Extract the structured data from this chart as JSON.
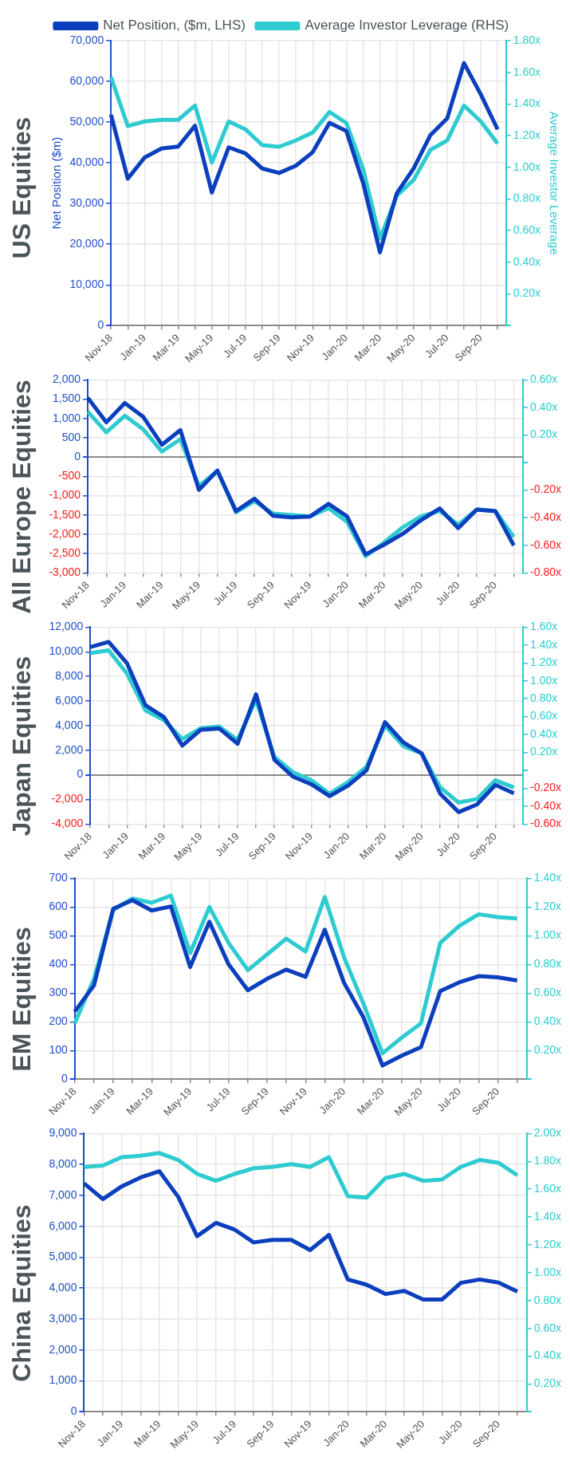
{
  "chart_data": [
    {
      "type": "line",
      "title": "US Equities",
      "ylabel": "Net Position ($m)",
      "y2label": "Average Investor Leverage",
      "legend": "top",
      "grid": true,
      "categories": [
        "Nov-18",
        null,
        "Jan-19",
        null,
        "Mar-19",
        null,
        "May-19",
        null,
        "Jul-19",
        null,
        "Sep-19",
        null,
        "Nov-19",
        null,
        "Jan-20",
        null,
        "Mar-20",
        null,
        "May-20",
        null,
        "Jul-20",
        null,
        "Sep-20",
        null
      ],
      "ylim": [
        0,
        70000
      ],
      "yticks": [
        0,
        {
          "value": 10000,
          "label": "10,000"
        },
        {
          "value": 20000,
          "label": "20,000"
        },
        {
          "value": 30000,
          "label": "30,000"
        },
        {
          "value": 40000,
          "label": "40,000"
        },
        {
          "value": 50000,
          "label": "50,000"
        },
        {
          "value": 60000,
          "label": "60,000"
        },
        {
          "value": 70000,
          "label": "70,000"
        }
      ],
      "y2lim": [
        0,
        1.8
      ],
      "y2ticks": [
        {
          "value": 0,
          "label": null
        },
        {
          "value": 0.2,
          "label": "0.20x"
        },
        {
          "value": 0.4,
          "label": "0.40x"
        },
        {
          "value": 0.6,
          "label": "0.60x"
        },
        {
          "value": 0.8,
          "label": "0.80x"
        },
        {
          "value": 1.0,
          "label": "1.00x"
        },
        {
          "value": 1.2,
          "label": "1.20x"
        },
        {
          "value": 1.4,
          "label": "1.40x"
        },
        {
          "value": 1.6,
          "label": "1.60x"
        },
        {
          "value": 1.8,
          "label": "1.80x"
        }
      ],
      "series": [
        {
          "name": "Net Position, ($m, LHS)",
          "color": "#0b3fbd",
          "values": [
            51800,
            36100,
            41300,
            43500,
            44000,
            49100,
            32700,
            43800,
            42300,
            38600,
            37500,
            39300,
            42600,
            49800,
            47800,
            35000,
            18000,
            32500,
            38600,
            46800,
            50900,
            64500,
            56800,
            48200
          ]
        },
        {
          "name": "Average Investor Leverage (RHS)",
          "color": "#2ecbd0",
          "axis": "y2",
          "values": [
            1.57,
            1.26,
            1.29,
            1.3,
            1.3,
            1.39,
            1.03,
            1.29,
            1.24,
            1.14,
            1.13,
            1.17,
            1.22,
            1.35,
            1.28,
            0.99,
            0.55,
            0.82,
            0.92,
            1.11,
            1.17,
            1.39,
            1.29,
            1.15
          ]
        }
      ]
    },
    {
      "type": "line",
      "title": "All Europe Equities",
      "grid": true,
      "categories": [
        "Nov-18",
        null,
        "Jan-19",
        null,
        "Mar-19",
        null,
        "May-19",
        null,
        "Jul-19",
        null,
        "Sep-19",
        null,
        "Nov-19",
        null,
        "Jan-20",
        null,
        "Mar-20",
        null,
        "May-20",
        null,
        "Jul-20",
        null,
        "Sep-20",
        null
      ],
      "ylim": [
        -3000,
        2000
      ],
      "yticks": [
        {
          "value": -3000,
          "label": "-3,000"
        },
        {
          "value": -2500,
          "label": "-2,500"
        },
        {
          "value": -2000,
          "label": "-2,000"
        },
        {
          "value": -1500,
          "label": "-1,500"
        },
        {
          "value": -1000,
          "label": "-1,000"
        },
        -500,
        0,
        500,
        {
          "value": 1000,
          "label": "1,000"
        },
        {
          "value": 1500,
          "label": "1,500"
        },
        {
          "value": 2000,
          "label": "2,000"
        }
      ],
      "y2lim": [
        -0.8,
        0.6
      ],
      "y2ticks": [
        {
          "value": -0.8,
          "label": "-0.80x"
        },
        {
          "value": -0.6,
          "label": "-0.60x"
        },
        {
          "value": -0.4,
          "label": "-0.40x"
        },
        {
          "value": -0.2,
          "label": "-0.20x"
        },
        {
          "value": 0,
          "label": null
        },
        {
          "value": 0.2,
          "label": "0.20x"
        },
        {
          "value": 0.4,
          "label": "0.40x"
        },
        {
          "value": 0.6,
          "label": "0.60x"
        }
      ],
      "series": [
        {
          "color": "#0b3fbd",
          "values": [
            1540,
            900,
            1400,
            1040,
            320,
            700,
            -850,
            -350,
            -1400,
            -1080,
            -1520,
            -1560,
            -1540,
            -1210,
            -1540,
            -2520,
            -2270,
            -1990,
            -1630,
            -1330,
            -1840,
            -1360,
            -1400,
            -2290
          ]
        },
        {
          "color": "#2ecbd0",
          "axis": "y2",
          "values": [
            0.37,
            0.22,
            0.34,
            0.24,
            0.08,
            0.17,
            -0.17,
            -0.06,
            -0.36,
            -0.28,
            -0.37,
            -0.38,
            -0.39,
            -0.33,
            -0.43,
            -0.68,
            -0.58,
            -0.47,
            -0.39,
            -0.35,
            -0.45,
            -0.34,
            -0.35,
            -0.54
          ]
        }
      ]
    },
    {
      "type": "line",
      "title": "Japan Equities",
      "grid": true,
      "categories": [
        "Nov-18",
        null,
        "Jan-19",
        null,
        "Mar-19",
        null,
        "May-19",
        null,
        "Jul-19",
        null,
        "Sep-19",
        null,
        "Nov-19",
        null,
        "Jan-20",
        null,
        "Mar-20",
        null,
        "May-20",
        null,
        "Jul-20",
        null,
        "Sep-20",
        null
      ],
      "ylim": [
        -4000,
        12000
      ],
      "yticks": [
        {
          "value": -4000,
          "label": "-4,000"
        },
        {
          "value": -2000,
          "label": "-2,000"
        },
        0,
        {
          "value": 2000,
          "label": "2,000"
        },
        {
          "value": 4000,
          "label": "4,000"
        },
        {
          "value": 6000,
          "label": "6,000"
        },
        {
          "value": 8000,
          "label": "8,000"
        },
        {
          "value": 10000,
          "label": "10,000"
        },
        {
          "value": 12000,
          "label": "12,000"
        }
      ],
      "y2lim": [
        -0.6,
        1.6
      ],
      "y2ticks": [
        {
          "value": -0.6,
          "label": "-0.60x"
        },
        {
          "value": -0.4,
          "label": "-0.40x"
        },
        {
          "value": -0.2,
          "label": "-0.20x"
        },
        {
          "value": 0,
          "label": null
        },
        {
          "value": 0.2,
          "label": "0.20x"
        },
        {
          "value": 0.4,
          "label": "0.40x"
        },
        {
          "value": 0.6,
          "label": "0.60x"
        },
        {
          "value": 0.8,
          "label": "0.80x"
        },
        {
          "value": 1.0,
          "label": "1.00x"
        },
        {
          "value": 1.2,
          "label": "1.20x"
        },
        {
          "value": 1.4,
          "label": "1.40x"
        },
        {
          "value": 1.6,
          "label": "1.60x"
        }
      ],
      "series": [
        {
          "color": "#0b3fbd",
          "values": [
            10380,
            10800,
            9050,
            5650,
            4700,
            2380,
            3660,
            3770,
            2520,
            6550,
            1220,
            -140,
            -770,
            -1730,
            -880,
            370,
            4280,
            2640,
            1730,
            -1530,
            -3030,
            -2410,
            -820,
            -1500
          ]
        },
        {
          "color": "#2ecbd0",
          "axis": "y2",
          "values": [
            1.31,
            1.34,
            1.08,
            0.67,
            0.56,
            0.35,
            0.47,
            0.49,
            0.34,
            0.79,
            0.15,
            -0.02,
            -0.11,
            -0.26,
            -0.13,
            0.04,
            0.5,
            0.27,
            0.19,
            -0.19,
            -0.36,
            -0.32,
            -0.11,
            -0.19
          ]
        }
      ]
    },
    {
      "type": "line",
      "title": "EM Equities",
      "grid": true,
      "categories": [
        "Nov-18",
        null,
        "Jan-19",
        null,
        "Mar-19",
        null,
        "May-19",
        null,
        "Jul-19",
        null,
        "Sep-19",
        null,
        "Nov-19",
        null,
        "Jan-20",
        null,
        "Mar-20",
        null,
        "May-20",
        null,
        "Jul-20",
        null,
        "Sep-20",
        null
      ],
      "ylim": [
        0,
        700
      ],
      "yticks": [
        0,
        100,
        200,
        300,
        400,
        500,
        600,
        700
      ],
      "y2lim": [
        0,
        1.4
      ],
      "y2ticks": [
        {
          "value": 0,
          "label": null
        },
        {
          "value": 0.2,
          "label": "0.20x"
        },
        {
          "value": 0.4,
          "label": "0.40x"
        },
        {
          "value": 0.6,
          "label": "0.60x"
        },
        {
          "value": 0.8,
          "label": "0.80x"
        },
        {
          "value": 1.0,
          "label": "1.00x"
        },
        {
          "value": 1.2,
          "label": "1.20x"
        },
        {
          "value": 1.4,
          "label": "1.40x"
        }
      ],
      "series": [
        {
          "color": "#0b3fbd",
          "values": [
            236,
            327,
            594,
            624,
            588,
            602,
            391,
            549,
            400,
            310,
            350,
            382,
            357,
            521,
            336,
            217,
            48,
            82,
            112,
            307,
            338,
            359,
            355,
            344
          ]
        },
        {
          "color": "#2ecbd0",
          "axis": "y2",
          "values": [
            0.39,
            0.7,
            1.18,
            1.26,
            1.23,
            1.28,
            0.88,
            1.2,
            0.95,
            0.76,
            0.87,
            0.98,
            0.89,
            1.27,
            0.85,
            0.53,
            0.18,
            0.29,
            0.39,
            0.95,
            1.07,
            1.15,
            1.13,
            1.12
          ]
        }
      ]
    },
    {
      "type": "line",
      "title": "China Equities",
      "grid": true,
      "categories": [
        "Nov-18",
        null,
        "Jan-19",
        null,
        "Mar-19",
        null,
        "May-19",
        null,
        "Jul-19",
        null,
        "Sep-19",
        null,
        "Nov-19",
        null,
        "Jan-20",
        null,
        "Mar-20",
        null,
        "May-20",
        null,
        "Jul-20",
        null,
        "Sep-20",
        null
      ],
      "ylim": [
        0,
        9000
      ],
      "yticks": [
        0,
        {
          "value": 1000,
          "label": "1,000"
        },
        {
          "value": 2000,
          "label": "2,000"
        },
        {
          "value": 3000,
          "label": "3,000"
        },
        {
          "value": 4000,
          "label": "4,000"
        },
        {
          "value": 5000,
          "label": "5,000"
        },
        {
          "value": 6000,
          "label": "6,000"
        },
        {
          "value": 7000,
          "label": "7,000"
        },
        {
          "value": 8000,
          "label": "8,000"
        },
        {
          "value": 9000,
          "label": "9,000"
        }
      ],
      "y2lim": [
        0,
        2.0
      ],
      "y2ticks": [
        {
          "value": 0,
          "label": null
        },
        {
          "value": 0.2,
          "label": "0.20x"
        },
        {
          "value": 0.4,
          "label": "0.40x"
        },
        {
          "value": 0.6,
          "label": "0.60x"
        },
        {
          "value": 0.8,
          "label": "0.80x"
        },
        {
          "value": 1.0,
          "label": "1.00x"
        },
        {
          "value": 1.2,
          "label": "1.20x"
        },
        {
          "value": 1.4,
          "label": "1.40x"
        },
        {
          "value": 1.6,
          "label": "1.60x"
        },
        {
          "value": 1.8,
          "label": "1.80x"
        },
        {
          "value": 2.0,
          "label": "2.00x"
        }
      ],
      "series": [
        {
          "color": "#0b3fbd",
          "values": [
            7390,
            6880,
            7290,
            7580,
            7780,
            6950,
            5680,
            6110,
            5890,
            5480,
            5560,
            5560,
            5230,
            5720,
            4280,
            4110,
            3810,
            3910,
            3630,
            3630,
            4170,
            4280,
            4180,
            3890
          ]
        },
        {
          "color": "#2ecbd0",
          "axis": "y2",
          "values": [
            1.76,
            1.77,
            1.83,
            1.84,
            1.86,
            1.81,
            1.71,
            1.66,
            1.71,
            1.75,
            1.76,
            1.78,
            1.76,
            1.83,
            1.55,
            1.54,
            1.68,
            1.71,
            1.66,
            1.67,
            1.76,
            1.81,
            1.79,
            1.7
          ]
        }
      ]
    }
  ]
}
